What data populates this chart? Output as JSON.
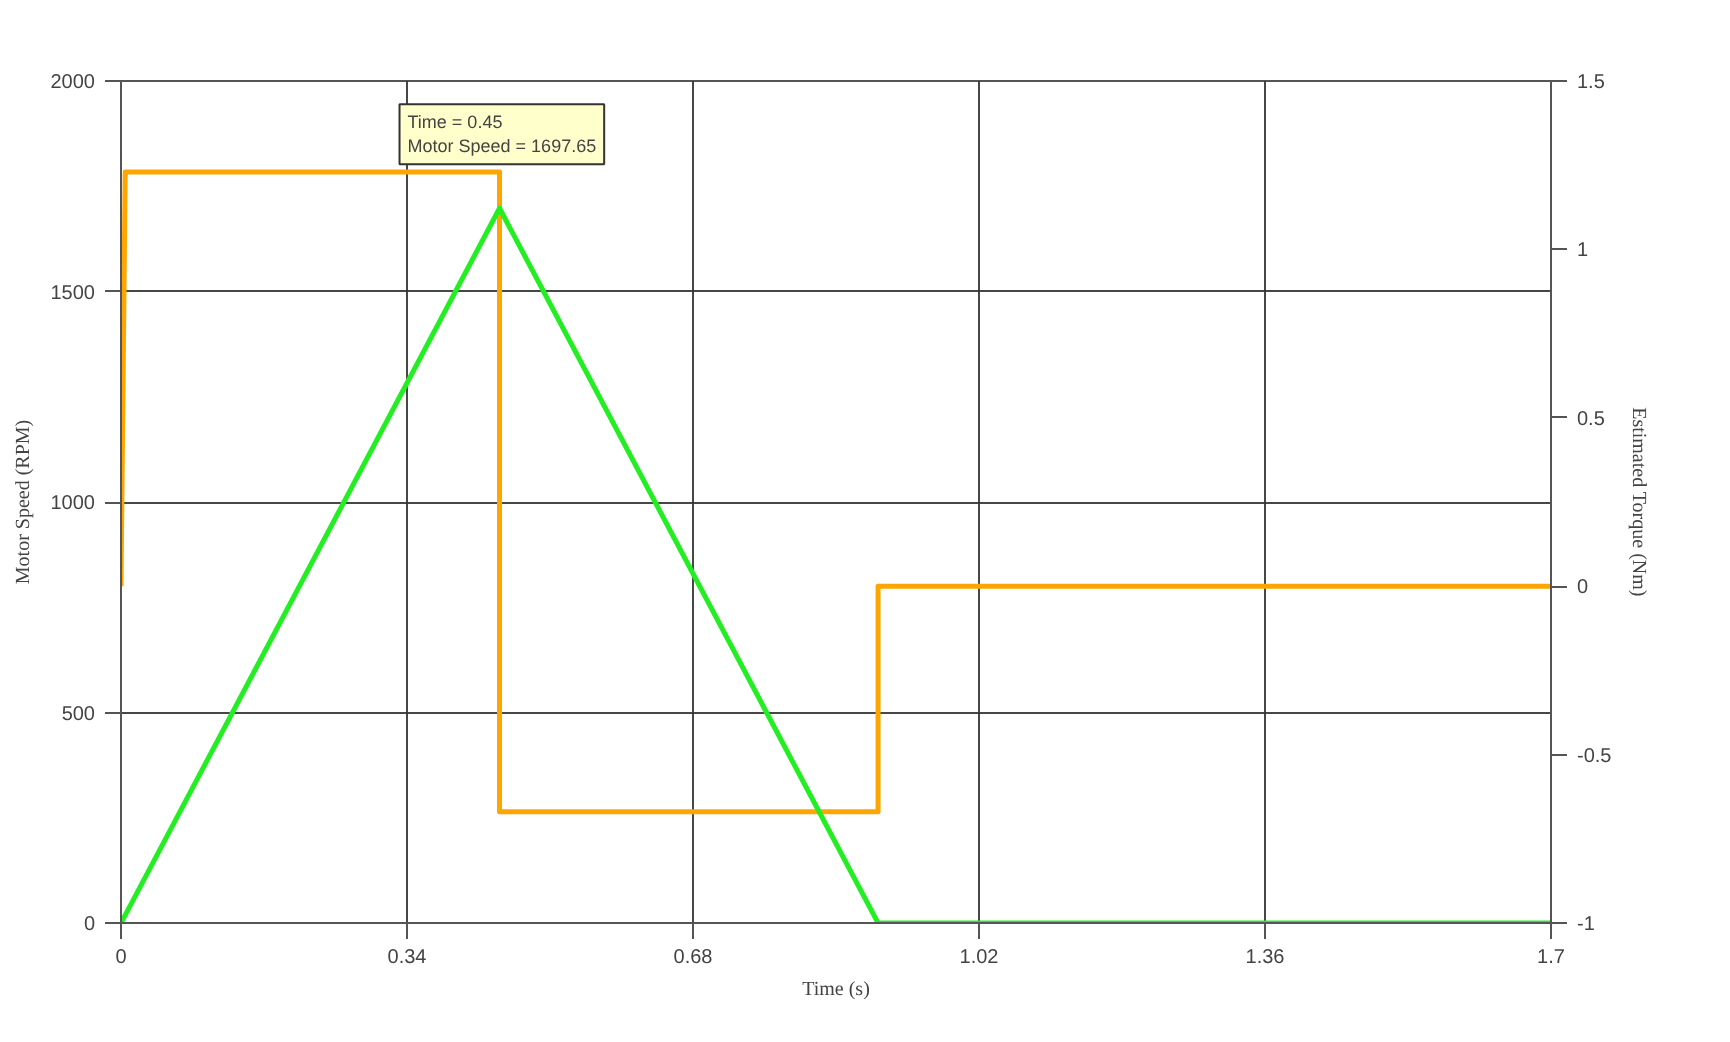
{
  "chart_data": {
    "type": "line",
    "xlabel": "Time (s)",
    "ylabel": "Motor Speed (RPM)",
    "y2label": "Estimated Torque (Nm)",
    "xlim": [
      0,
      1.7
    ],
    "xticks": [
      0,
      0.34,
      0.68,
      1.02,
      1.36,
      1.7
    ],
    "ylim": [
      0,
      2000
    ],
    "yticks": [
      0,
      500,
      1000,
      1500,
      2000
    ],
    "y2lim": [
      -1,
      1.5
    ],
    "y2ticks": [
      -1,
      -0.5,
      0,
      0.5,
      1,
      1.5
    ],
    "grid": true,
    "marker": "none",
    "line_style": "solid",
    "series": [
      {
        "color": "#ffa500",
        "axis": "y2",
        "x": [
          0,
          0.005,
          0.45,
          0.45,
          0.9,
          0.9,
          1.7
        ],
        "values": [
          0,
          1.23,
          1.23,
          -0.67,
          -0.67,
          0,
          0
        ]
      },
      {
        "color": "#22ee22",
        "x": [
          0,
          0.45,
          0.9,
          1.7
        ],
        "values": [
          0,
          1697.65,
          0,
          0
        ]
      }
    ],
    "annotations": [
      {
        "text": "Time = 0.45\nMotor Speed = 1697.65",
        "x": 0.45,
        "y": 1697.65
      }
    ]
  }
}
